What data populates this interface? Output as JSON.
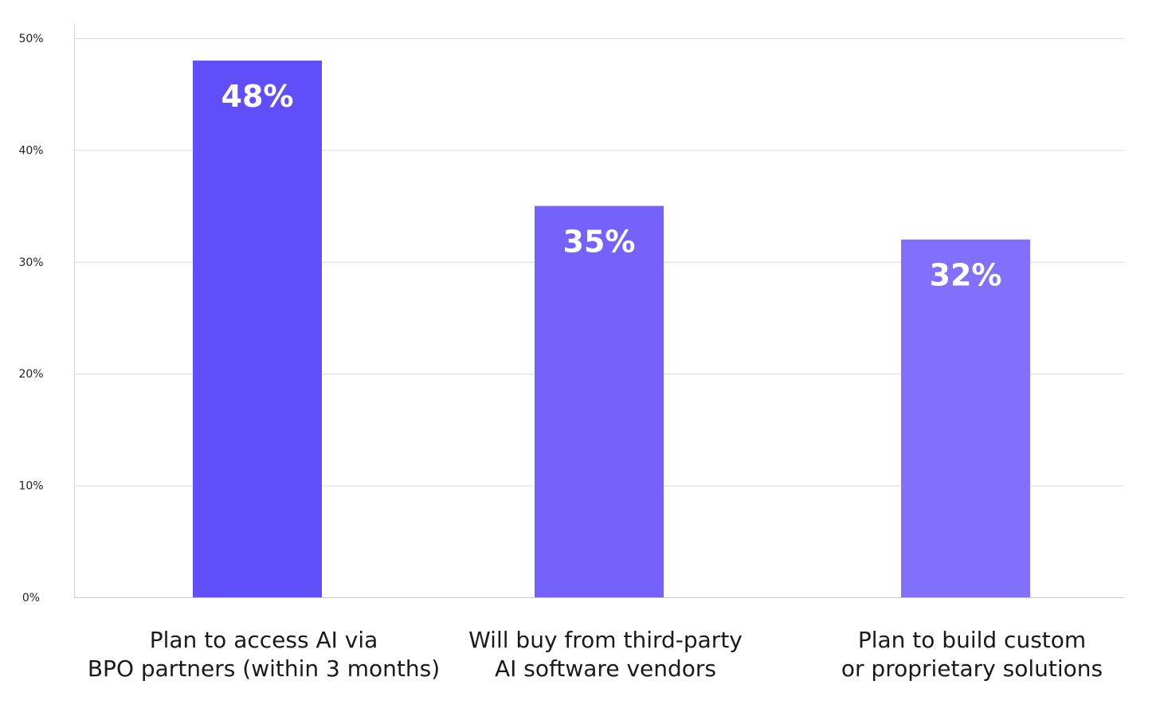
{
  "chart_data": {
    "type": "bar",
    "categories": [
      [
        "Plan to access AI via",
        "BPO partners (within 3 months)"
      ],
      [
        "Will buy from third-party",
        "AI software vendors"
      ],
      [
        "Plan to build custom",
        "or proprietary solutions"
      ]
    ],
    "values": [
      48,
      35,
      32
    ],
    "data_labels": [
      "48%",
      "35%",
      "32%"
    ],
    "bar_colors": [
      "#604ff9",
      "#7462fa",
      "#8070fb"
    ],
    "ylim": [
      0,
      50
    ],
    "yticks": [
      0,
      10,
      20,
      30,
      40,
      50
    ],
    "ytick_labels": [
      "0%",
      "10%",
      "20%",
      "30%",
      "40%",
      "50%"
    ],
    "grid": true,
    "title": "",
    "xlabel": "",
    "ylabel": ""
  }
}
